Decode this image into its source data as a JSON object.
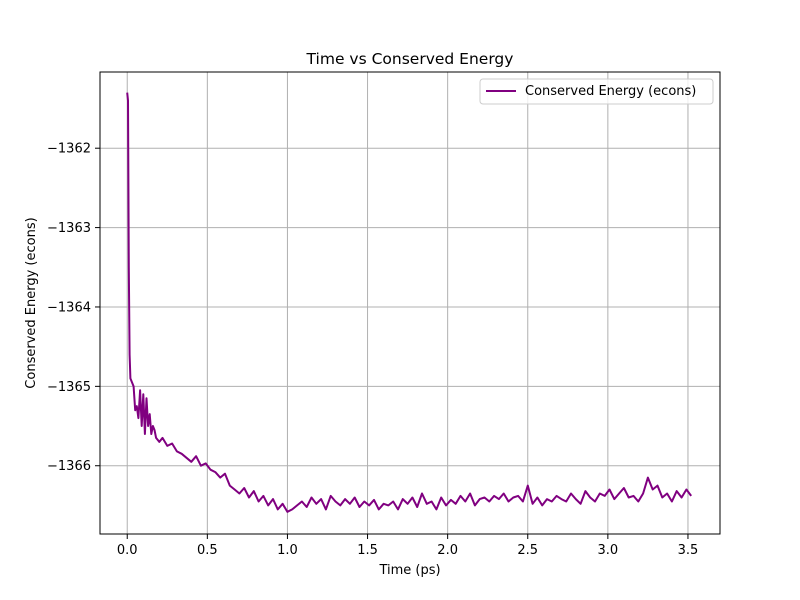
{
  "chart_data": {
    "type": "line",
    "title": "Time vs Conserved Energy",
    "xlabel": "Time (ps)",
    "ylabel": "Conserved Energy (econs)",
    "xlim": [
      -0.17,
      3.7
    ],
    "ylim": [
      -1366.86,
      -1361.04
    ],
    "xticks": [
      0.0,
      0.5,
      1.0,
      1.5,
      2.0,
      2.5,
      3.0,
      3.5
    ],
    "xtick_labels": [
      "0.0",
      "0.5",
      "1.0",
      "1.5",
      "2.0",
      "2.5",
      "3.0",
      "3.5"
    ],
    "yticks": [
      -1362,
      -1363,
      -1364,
      -1365,
      -1366
    ],
    "ytick_labels": [
      "−1362",
      "−1363",
      "−1364",
      "−1365",
      "−1366"
    ],
    "grid": true,
    "legend_position": "top-right",
    "colors": {
      "series": "#800080",
      "grid": "#b0b0b0"
    },
    "series": [
      {
        "name": "Conserved Energy (econs)",
        "x": [
          0.0,
          0.005,
          0.01,
          0.015,
          0.02,
          0.03,
          0.04,
          0.05,
          0.06,
          0.07,
          0.08,
          0.09,
          0.1,
          0.11,
          0.12,
          0.13,
          0.14,
          0.15,
          0.16,
          0.17,
          0.18,
          0.2,
          0.22,
          0.25,
          0.28,
          0.31,
          0.34,
          0.37,
          0.4,
          0.43,
          0.46,
          0.49,
          0.52,
          0.55,
          0.58,
          0.61,
          0.64,
          0.67,
          0.7,
          0.73,
          0.76,
          0.79,
          0.82,
          0.85,
          0.88,
          0.91,
          0.94,
          0.97,
          1.0,
          1.03,
          1.06,
          1.09,
          1.12,
          1.15,
          1.18,
          1.21,
          1.24,
          1.27,
          1.3,
          1.33,
          1.36,
          1.39,
          1.42,
          1.45,
          1.48,
          1.51,
          1.54,
          1.57,
          1.6,
          1.63,
          1.66,
          1.69,
          1.72,
          1.75,
          1.78,
          1.81,
          1.84,
          1.87,
          1.9,
          1.93,
          1.96,
          1.99,
          2.02,
          2.05,
          2.08,
          2.11,
          2.14,
          2.17,
          2.2,
          2.23,
          2.26,
          2.29,
          2.32,
          2.35,
          2.38,
          2.41,
          2.44,
          2.47,
          2.5,
          2.53,
          2.56,
          2.59,
          2.62,
          2.65,
          2.68,
          2.71,
          2.74,
          2.77,
          2.8,
          2.83,
          2.86,
          2.89,
          2.92,
          2.95,
          2.98,
          3.01,
          3.04,
          3.07,
          3.1,
          3.13,
          3.16,
          3.19,
          3.22,
          3.25,
          3.28,
          3.31,
          3.34,
          3.37,
          3.4,
          3.43,
          3.46,
          3.49,
          3.52
        ],
        "y": [
          -1361.3,
          -1361.4,
          -1363.5,
          -1364.6,
          -1364.9,
          -1364.95,
          -1365.0,
          -1365.3,
          -1365.25,
          -1365.4,
          -1365.05,
          -1365.5,
          -1365.1,
          -1365.6,
          -1365.15,
          -1365.5,
          -1365.35,
          -1365.6,
          -1365.5,
          -1365.55,
          -1365.65,
          -1365.7,
          -1365.65,
          -1365.75,
          -1365.72,
          -1365.82,
          -1365.85,
          -1365.9,
          -1365.95,
          -1365.88,
          -1366.0,
          -1365.97,
          -1366.05,
          -1366.08,
          -1366.15,
          -1366.1,
          -1366.25,
          -1366.3,
          -1366.35,
          -1366.28,
          -1366.4,
          -1366.32,
          -1366.45,
          -1366.38,
          -1366.5,
          -1366.42,
          -1366.55,
          -1366.48,
          -1366.58,
          -1366.55,
          -1366.5,
          -1366.45,
          -1366.52,
          -1366.4,
          -1366.48,
          -1366.42,
          -1366.55,
          -1366.38,
          -1366.45,
          -1366.5,
          -1366.42,
          -1366.48,
          -1366.4,
          -1366.52,
          -1366.45,
          -1366.5,
          -1366.43,
          -1366.55,
          -1366.48,
          -1366.5,
          -1366.45,
          -1366.55,
          -1366.42,
          -1366.48,
          -1366.4,
          -1366.52,
          -1366.35,
          -1366.48,
          -1366.45,
          -1366.55,
          -1366.4,
          -1366.5,
          -1366.43,
          -1366.48,
          -1366.38,
          -1366.45,
          -1366.35,
          -1366.5,
          -1366.42,
          -1366.4,
          -1366.45,
          -1366.38,
          -1366.42,
          -1366.35,
          -1366.45,
          -1366.4,
          -1366.38,
          -1366.45,
          -1366.25,
          -1366.48,
          -1366.4,
          -1366.5,
          -1366.42,
          -1366.45,
          -1366.38,
          -1366.42,
          -1366.45,
          -1366.35,
          -1366.42,
          -1366.48,
          -1366.32,
          -1366.4,
          -1366.45,
          -1366.35,
          -1366.38,
          -1366.3,
          -1366.42,
          -1366.35,
          -1366.28,
          -1366.4,
          -1366.38,
          -1366.45,
          -1366.35,
          -1366.15,
          -1366.3,
          -1366.25,
          -1366.4,
          -1366.35,
          -1366.45,
          -1366.32,
          -1366.4,
          -1366.3,
          -1366.38
        ]
      }
    ]
  }
}
